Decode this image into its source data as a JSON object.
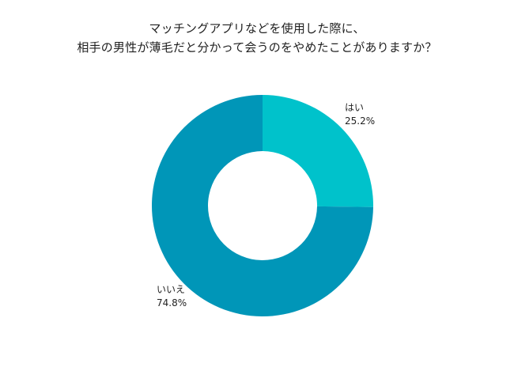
{
  "chart_data": {
    "type": "pie",
    "donut": true,
    "title_lines": [
      "マッチングアプリなどを使用した際に、",
      "相手の男性が薄毛だと分かって会うのをやめたことがありますか？"
    ],
    "slices": [
      {
        "label": "はい",
        "value": 25.2,
        "value_label": "25.2%",
        "color": "#00c2cb"
      },
      {
        "label": "いいえ",
        "value": 74.8,
        "value_label": "74.8%",
        "color": "#0096b8"
      }
    ],
    "start_angle": "top, clockwise"
  }
}
